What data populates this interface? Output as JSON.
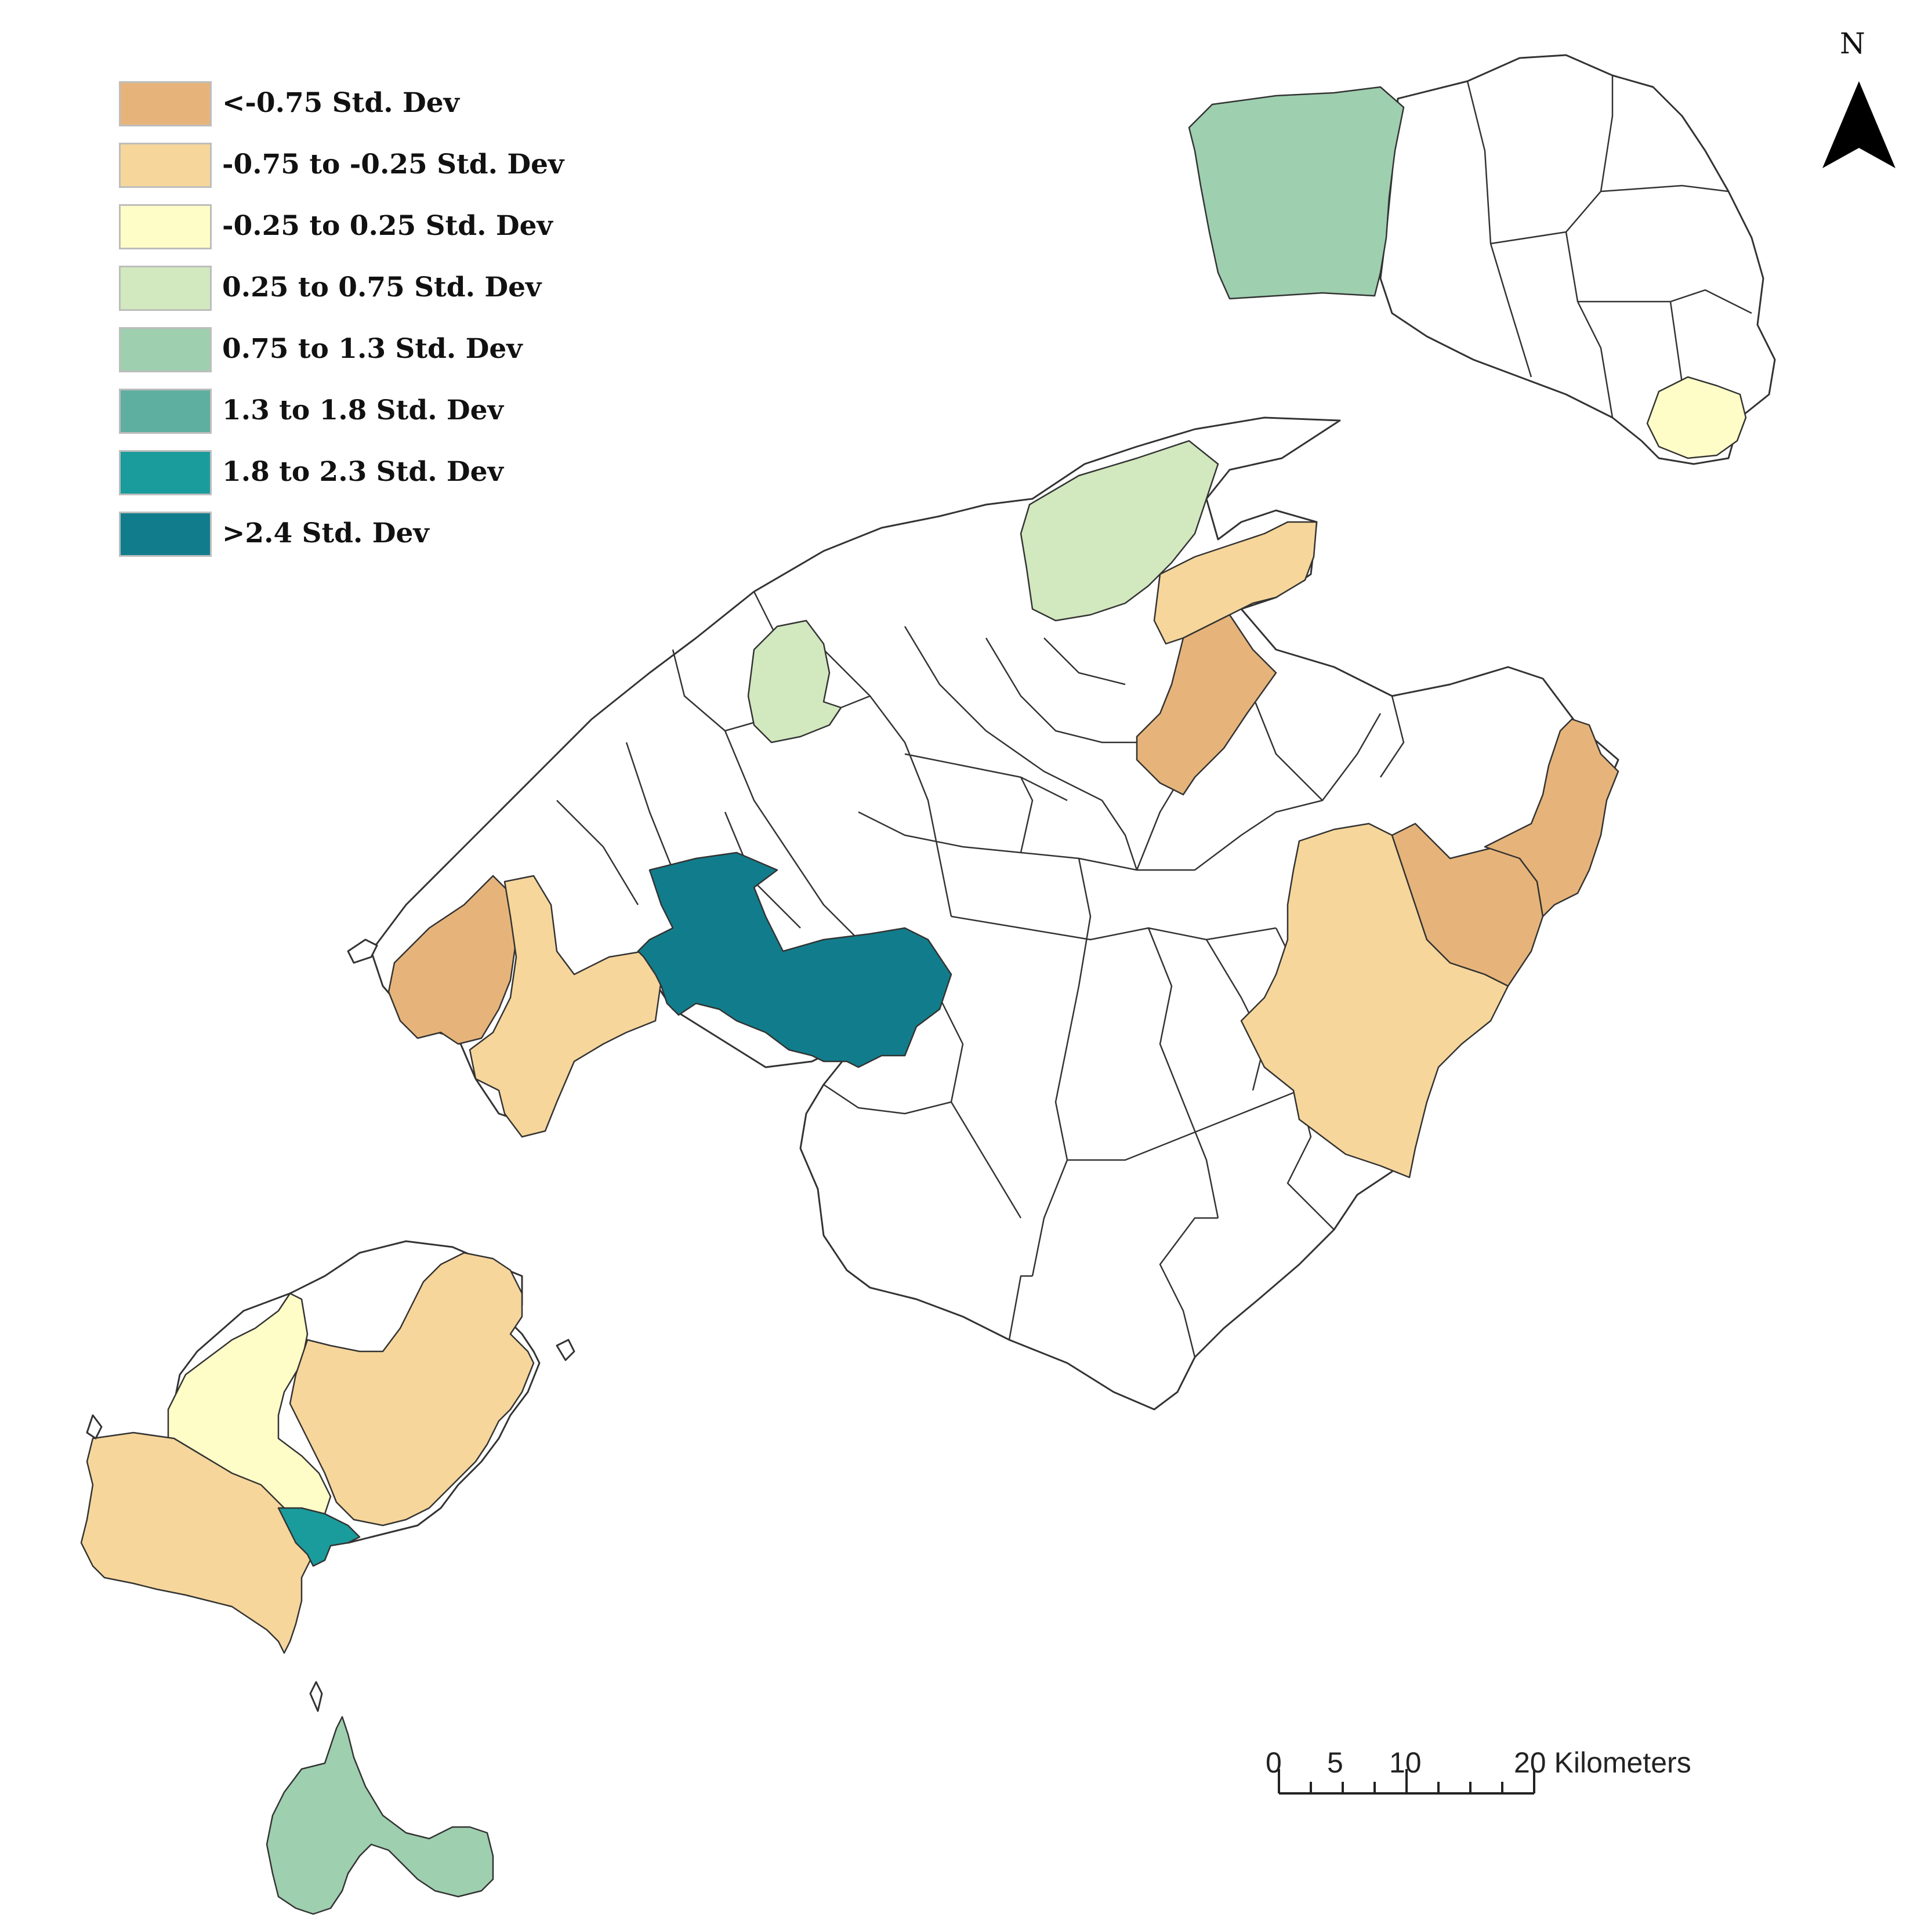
{
  "legend": {
    "items": [
      {
        "label": "<-0.75 Std. Dev",
        "color": "#e6b47a"
      },
      {
        "label": "-0.75 to -0.25 Std. Dev",
        "color": "#f6d69b"
      },
      {
        "label": "-0.25 to 0.25 Std. Dev",
        "color": "#fffdc7"
      },
      {
        "label": "0.25 to 0.75 Std. Dev",
        "color": "#d2e8bf"
      },
      {
        "label": "0.75 to 1.3 Std. Dev",
        "color": "#9ecfaf"
      },
      {
        "label": "1.3 to 1.8 Std. Dev",
        "color": "#5fafa1"
      },
      {
        "label": "1.8 to 2.3 Std. Dev",
        "color": "#1a9c9c"
      },
      {
        "label": ">2.4 Std. Dev",
        "color": "#117d8c"
      }
    ]
  },
  "north_arrow": {
    "label": "N"
  },
  "scale_bar": {
    "labels": [
      "0",
      "5",
      "10",
      "20 Kilometers"
    ],
    "unit": "Kilometers"
  }
}
